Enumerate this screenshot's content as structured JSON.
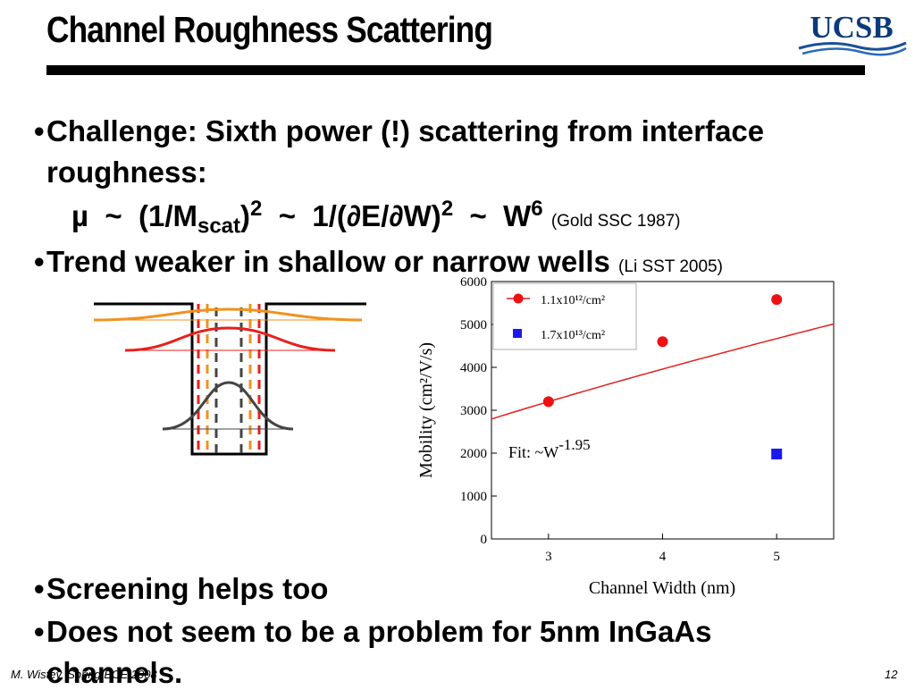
{
  "slide": {
    "title": "Channel Roughness Scattering",
    "logo_text": "UCSB",
    "bullets": {
      "b1_line1": "Challenge: Sixth power (!) scattering from interface",
      "b1_line2": "roughness:",
      "b2_text": "Trend weaker in shallow or narrow wells",
      "b2_ref": "(Li SST 2005)",
      "b3_text": "Screening helps too",
      "b4_line1": "Does not seem to be a problem for 5nm InGaAs",
      "b4_line2": "channels."
    },
    "formula": {
      "mu": "µ",
      "tilde": "~",
      "part1": "(1/M",
      "scat": "scat",
      "part1_close": ")",
      "sq": "2",
      "part2": "1/(∂E/∂W)",
      "w": "W",
      "six": "6",
      "ref": "(Gold SSC 1987)"
    },
    "footer": {
      "left": "M. Wistey, Spring ECE 2008",
      "right": "12"
    }
  },
  "chart_data": {
    "type": "scatter",
    "xlabel": "Channel Width (nm)",
    "ylabel": "Mobility (cm²/V/s)",
    "xlim": [
      2.5,
      5.5
    ],
    "ylim": [
      0,
      6000
    ],
    "xticks": [
      "3",
      "4",
      "5"
    ],
    "yticks": [
      "0",
      "1000",
      "2000",
      "3000",
      "4000",
      "5000",
      "6000"
    ],
    "series": [
      {
        "name": "1.1x10¹²/cm²",
        "marker": "circle",
        "color": "#ee1111",
        "x": [
          3,
          4,
          5
        ],
        "y": [
          3200,
          4600,
          5580
        ]
      },
      {
        "name": "1.7x10¹³/cm²",
        "marker": "square",
        "color": "#1a1aee",
        "x": [
          5
        ],
        "y": [
          1980
        ]
      }
    ],
    "fit": {
      "label": "Fit: ~W",
      "exponent": "-1.95",
      "color": "#e02020"
    },
    "legend_position": "top-left",
    "grid": false
  },
  "diagram": {
    "description_colors": {
      "black": "#000000",
      "orange": "#f0921e",
      "red": "#e8201c",
      "gray": "#444444"
    }
  }
}
